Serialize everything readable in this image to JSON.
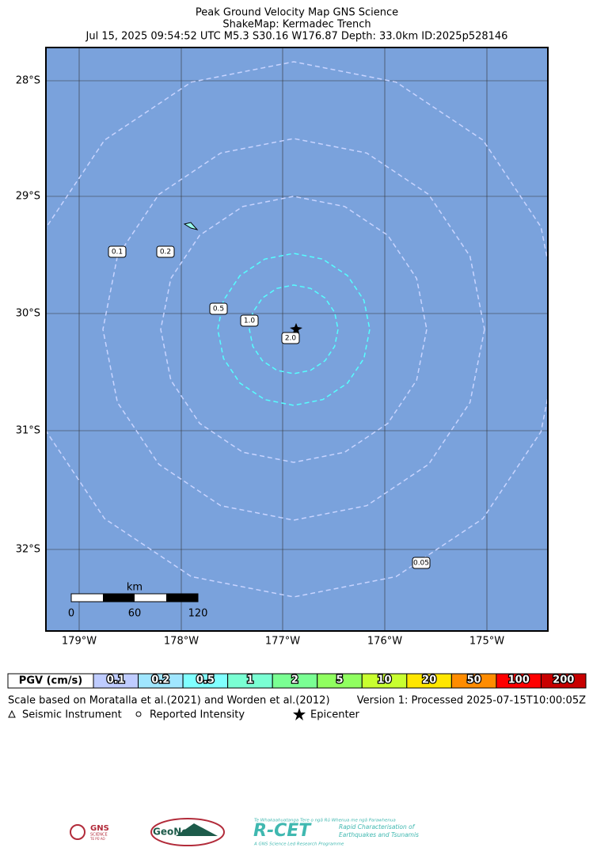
{
  "header": {
    "title": "Peak Ground Velocity Map GNS Science",
    "subtitle": "ShakeMap: Kermadec Trench",
    "event": "Jul 15, 2025 09:54:52 UTC M5.3 S30.16 W176.87 Depth: 33.0km ID:2025p528146"
  },
  "map": {
    "lat_labels": [
      "28°S",
      "29°S",
      "30°S",
      "31°S",
      "32°S"
    ],
    "lon_labels": [
      "179°W",
      "178°W",
      "177°W",
      "176°W",
      "175°W"
    ],
    "contour_labels": [
      "0.1",
      "0.2",
      "0.5",
      "1.0",
      "2.0",
      "0.05"
    ],
    "scale_bar": {
      "unit": "km",
      "ticks": [
        "0",
        "60",
        "120"
      ]
    }
  },
  "legend": {
    "title": "PGV (cm/s)",
    "items": [
      {
        "label": "0.1",
        "color": "#bfccff"
      },
      {
        "label": "0.2",
        "color": "#a0e6ff"
      },
      {
        "label": "0.5",
        "color": "#80ffff"
      },
      {
        "label": "1",
        "color": "#7affd3"
      },
      {
        "label": "2",
        "color": "#7aff93"
      },
      {
        "label": "5",
        "color": "#90ff60"
      },
      {
        "label": "10",
        "color": "#c8ff30"
      },
      {
        "label": "20",
        "color": "#ffe600"
      },
      {
        "label": "50",
        "color": "#ff8c00"
      },
      {
        "label": "100",
        "color": "#ff0000"
      },
      {
        "label": "200",
        "color": "#c80000"
      }
    ]
  },
  "footer": {
    "scale_note": "Scale based on Moratalla et al.(2021) and Worden et al.(2012)",
    "version": "Version 1: Processed 2025-07-15T10:00:05Z",
    "symbols": [
      "Seismic Instrument",
      "Reported Intensity",
      "Epicenter"
    ]
  },
  "logos": {
    "gns": "GNS",
    "gns_sub": "SCIENCE",
    "gns_maori": "TE PŪ AO",
    "geonet": "GeoNet",
    "rcet_top": "Te Whakaahuatanga Tere o ngā Rū Whenua me ngā Parawhenua",
    "rcet": "R-CET",
    "rcet_line1": "Rapid Characterisation of",
    "rcet_line2": "Earthquakes and Tsunamis",
    "rcet_bottom": "A GNS Science Led Research Programme"
  }
}
